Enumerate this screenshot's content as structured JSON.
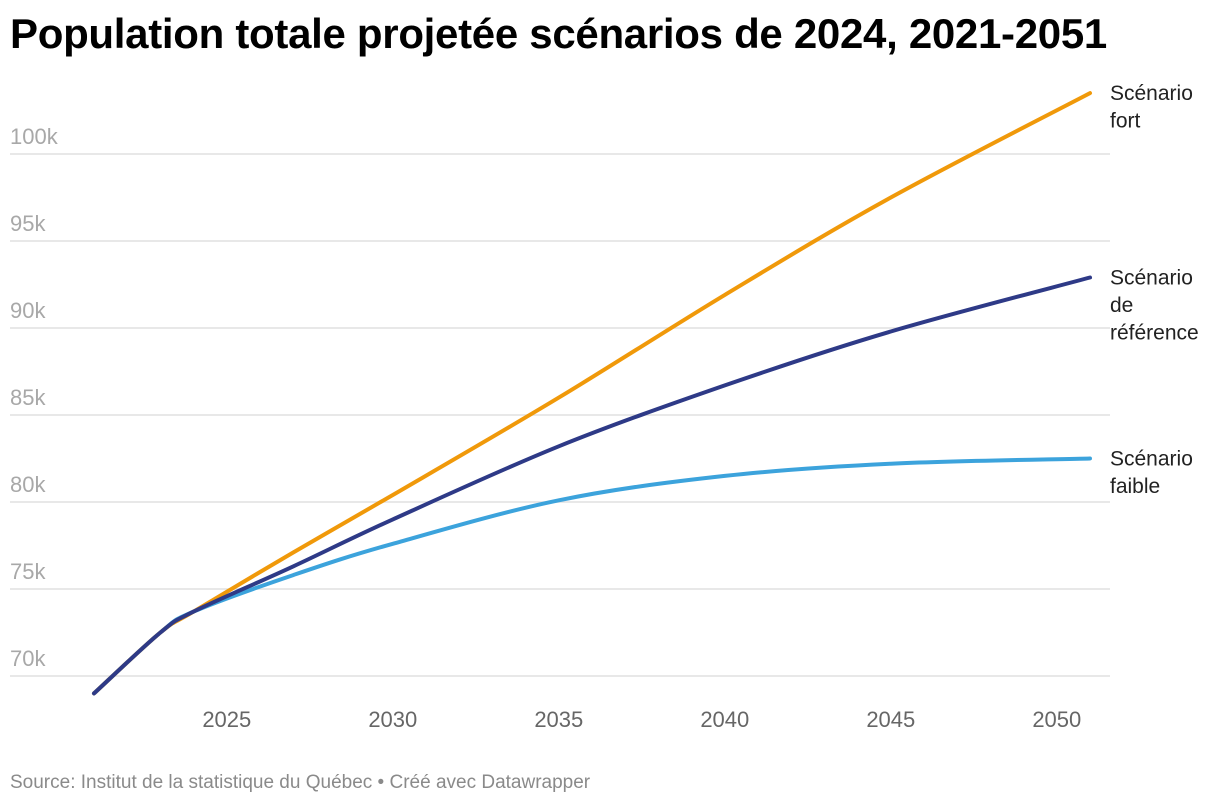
{
  "title": "Population totale projetée scénarios de 2024, 2021-2051",
  "footer": {
    "source_text": "Source: Institut de la statistique du Québec • Créé avec Datawrapper"
  },
  "chart_data": {
    "type": "line",
    "title": "Population totale projetée scénarios de 2024, 2021-2051",
    "xlabel": "",
    "ylabel": "",
    "xlim": [
      2021,
      2051
    ],
    "ylim": [
      68000,
      104000
    ],
    "grid": true,
    "legend": "direct labels at line ends (right)",
    "x_ticks": [
      2025,
      2030,
      2035,
      2040,
      2045,
      2050
    ],
    "y_ticks": [
      {
        "value": 70000,
        "label": "70k"
      },
      {
        "value": 75000,
        "label": "75k"
      },
      {
        "value": 80000,
        "label": "80k"
      },
      {
        "value": 85000,
        "label": "85k"
      },
      {
        "value": 90000,
        "label": "90k"
      },
      {
        "value": 95000,
        "label": "95k"
      },
      {
        "value": 100000,
        "label": "100k"
      }
    ],
    "x": [
      2021,
      2023,
      2024,
      2027,
      2030,
      2035,
      2040,
      2045,
      2051
    ],
    "series": [
      {
        "name": "Scénario fort",
        "label_lines": [
          "Scénario",
          "fort"
        ],
        "color": "#f0990a",
        "values": [
          69000,
          72500,
          73700,
          77100,
          80400,
          86000,
          91900,
          97500,
          103500
        ]
      },
      {
        "name": "Scénario de référence",
        "label_lines": [
          "Scénario",
          "de",
          "référence"
        ],
        "color": "#2e3a87",
        "values": [
          69000,
          72500,
          73700,
          76300,
          79000,
          83200,
          86700,
          89800,
          92900
        ]
      },
      {
        "name": "Scénario faible",
        "label_lines": [
          "Scénario",
          "faible"
        ],
        "color": "#3ca3dc",
        "values": [
          69000,
          72500,
          73700,
          75800,
          77600,
          80100,
          81500,
          82200,
          82500
        ]
      }
    ]
  },
  "colors": {
    "gridline": "#e0e0e0",
    "title": "#000000",
    "footer": "#8a8a8a"
  }
}
